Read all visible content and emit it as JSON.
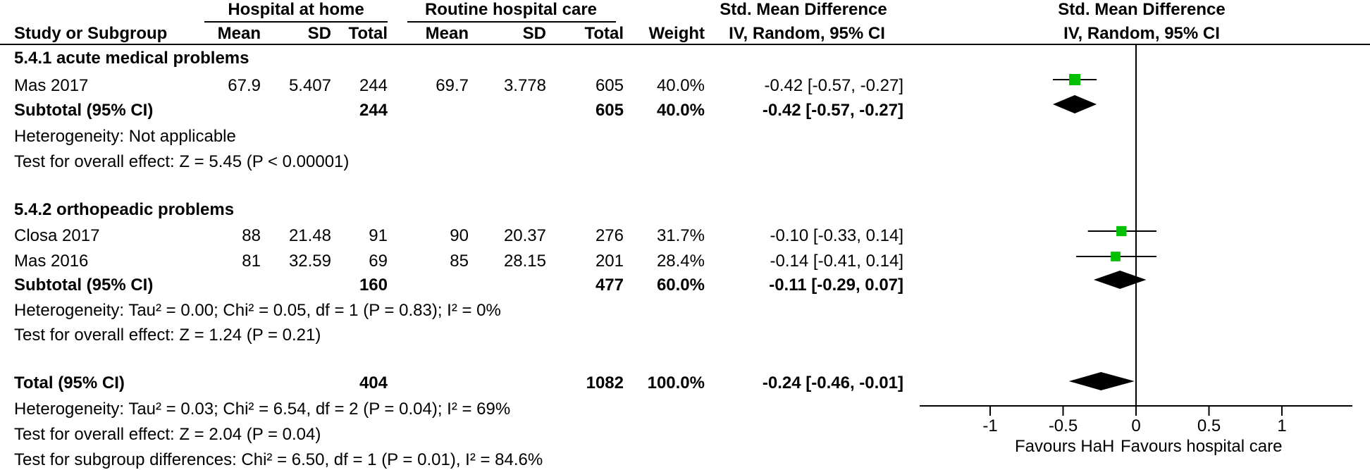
{
  "headers": {
    "group_hah": "Hospital at home",
    "group_routine": "Routine hospital care",
    "group_smd": "Std. Mean Difference",
    "plot_title": "Std. Mean Difference",
    "study": "Study or Subgroup",
    "mean1": "Mean",
    "sd1": "SD",
    "total1": "Total",
    "mean2": "Mean",
    "sd2": "SD",
    "total2": "Total",
    "weight": "Weight",
    "method": "IV, Random, 95% CI",
    "plot_method": "IV, Random, 95% CI"
  },
  "subgroup1": {
    "title": "5.4.1 acute medical problems",
    "study1": {
      "name": "Mas 2017",
      "mean1": "67.9",
      "sd1": "5.407",
      "total1": "244",
      "mean2": "69.7",
      "sd2": "3.778",
      "total2": "605",
      "weight": "40.0%",
      "ci": "-0.42 [-0.57, -0.27]"
    },
    "subtotal": {
      "label": "Subtotal (95% CI)",
      "total1": "244",
      "total2": "605",
      "weight": "40.0%",
      "ci": "-0.42 [-0.57, -0.27]"
    },
    "heterogeneity": "Heterogeneity: Not applicable",
    "overall": "Test for overall effect: Z = 5.45 (P < 0.00001)"
  },
  "subgroup2": {
    "title": "5.4.2 orthopeadic problems",
    "study1": {
      "name": "Closa 2017",
      "mean1": "88",
      "sd1": "21.48",
      "total1": "91",
      "mean2": "90",
      "sd2": "20.37",
      "total2": "276",
      "weight": "31.7%",
      "ci": "-0.10 [-0.33, 0.14]"
    },
    "study2": {
      "name": "Mas 2016",
      "mean1": "81",
      "sd1": "32.59",
      "total1": "69",
      "mean2": "85",
      "sd2": "28.15",
      "total2": "201",
      "weight": "28.4%",
      "ci": "-0.14 [-0.41, 0.14]"
    },
    "subtotal": {
      "label": "Subtotal (95% CI)",
      "total1": "160",
      "total2": "477",
      "weight": "60.0%",
      "ci": "-0.11 [-0.29, 0.07]"
    },
    "heterogeneity": "Heterogeneity: Tau² = 0.00; Chi² = 0.05, df = 1 (P = 0.83); I² = 0%",
    "overall": "Test for overall effect: Z = 1.24 (P = 0.21)"
  },
  "total": {
    "label": "Total (95% CI)",
    "total1": "404",
    "total2": "1082",
    "weight": "100.0%",
    "ci": "-0.24 [-0.46, -0.01]",
    "heterogeneity": "Heterogeneity: Tau² = 0.03; Chi² = 6.54, df = 2 (P = 0.04); I² = 69%",
    "overall": "Test for overall effect: Z = 2.04 (P = 0.04)",
    "subgroup_diff": "Test for subgroup differences: Chi² = 6.50, df = 1 (P = 0.01), I² = 84.6%"
  },
  "chart_data": {
    "type": "forest",
    "xlim": [
      -1.0,
      1.0
    ],
    "ticks": [
      -1,
      -0.5,
      0,
      0.5,
      1
    ],
    "tick_labels": [
      "-1",
      "-0.5",
      "0",
      "0.5",
      "1"
    ],
    "favours_left": "Favours HaH",
    "favours_right": "Favours hospital care",
    "study_colour": "#00c000",
    "studies": [
      {
        "name": "Mas 2017",
        "estimate": -0.42,
        "lower": -0.57,
        "upper": -0.27,
        "weight": 40.0
      },
      {
        "name": "Closa 2017",
        "estimate": -0.1,
        "lower": -0.33,
        "upper": 0.14,
        "weight": 31.7
      },
      {
        "name": "Mas 2016",
        "estimate": -0.14,
        "lower": -0.41,
        "upper": 0.14,
        "weight": 28.4
      }
    ],
    "pooled": [
      {
        "name": "Subtotal 5.4.1",
        "estimate": -0.42,
        "lower": -0.57,
        "upper": -0.27
      },
      {
        "name": "Subtotal 5.4.2",
        "estimate": -0.11,
        "lower": -0.29,
        "upper": 0.07
      },
      {
        "name": "Total",
        "estimate": -0.24,
        "lower": -0.46,
        "upper": -0.01
      }
    ]
  }
}
